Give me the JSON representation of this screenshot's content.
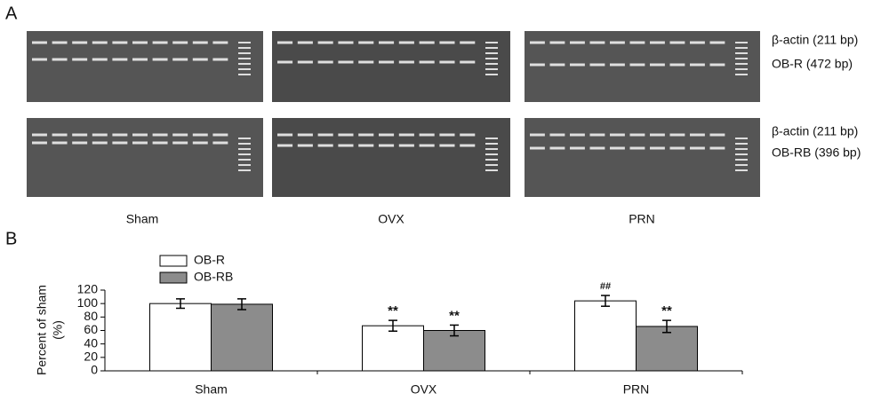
{
  "panel_labels": [
    "A",
    "B"
  ],
  "gel": {
    "row_labels": [
      [
        "β-actin (211 bp)",
        "OB-R   (472 bp)"
      ],
      [
        "β-actin (211 bp)",
        "OB-RB (396 bp)"
      ]
    ],
    "groups": [
      "Sham",
      "OVX",
      "PRN"
    ]
  },
  "chart_data": {
    "type": "bar",
    "ylabel": [
      "Percent of sham",
      "(%)"
    ],
    "categories": [
      "Sham",
      "OVX",
      "PRN"
    ],
    "series": [
      {
        "name": "OB-R",
        "color": "#ffffff",
        "values": [
          100,
          67,
          104
        ],
        "errors": [
          7,
          8,
          8
        ],
        "marks": [
          null,
          "**",
          "##"
        ]
      },
      {
        "name": "OB-RB",
        "color": "#8c8c8c",
        "values": [
          99,
          60,
          66
        ],
        "errors": [
          8,
          8,
          9
        ],
        "marks": [
          null,
          "**",
          "**"
        ]
      }
    ],
    "ylim": [
      0,
      120
    ],
    "yticks": [
      0,
      20,
      40,
      60,
      80,
      100,
      120
    ],
    "grid": false
  }
}
